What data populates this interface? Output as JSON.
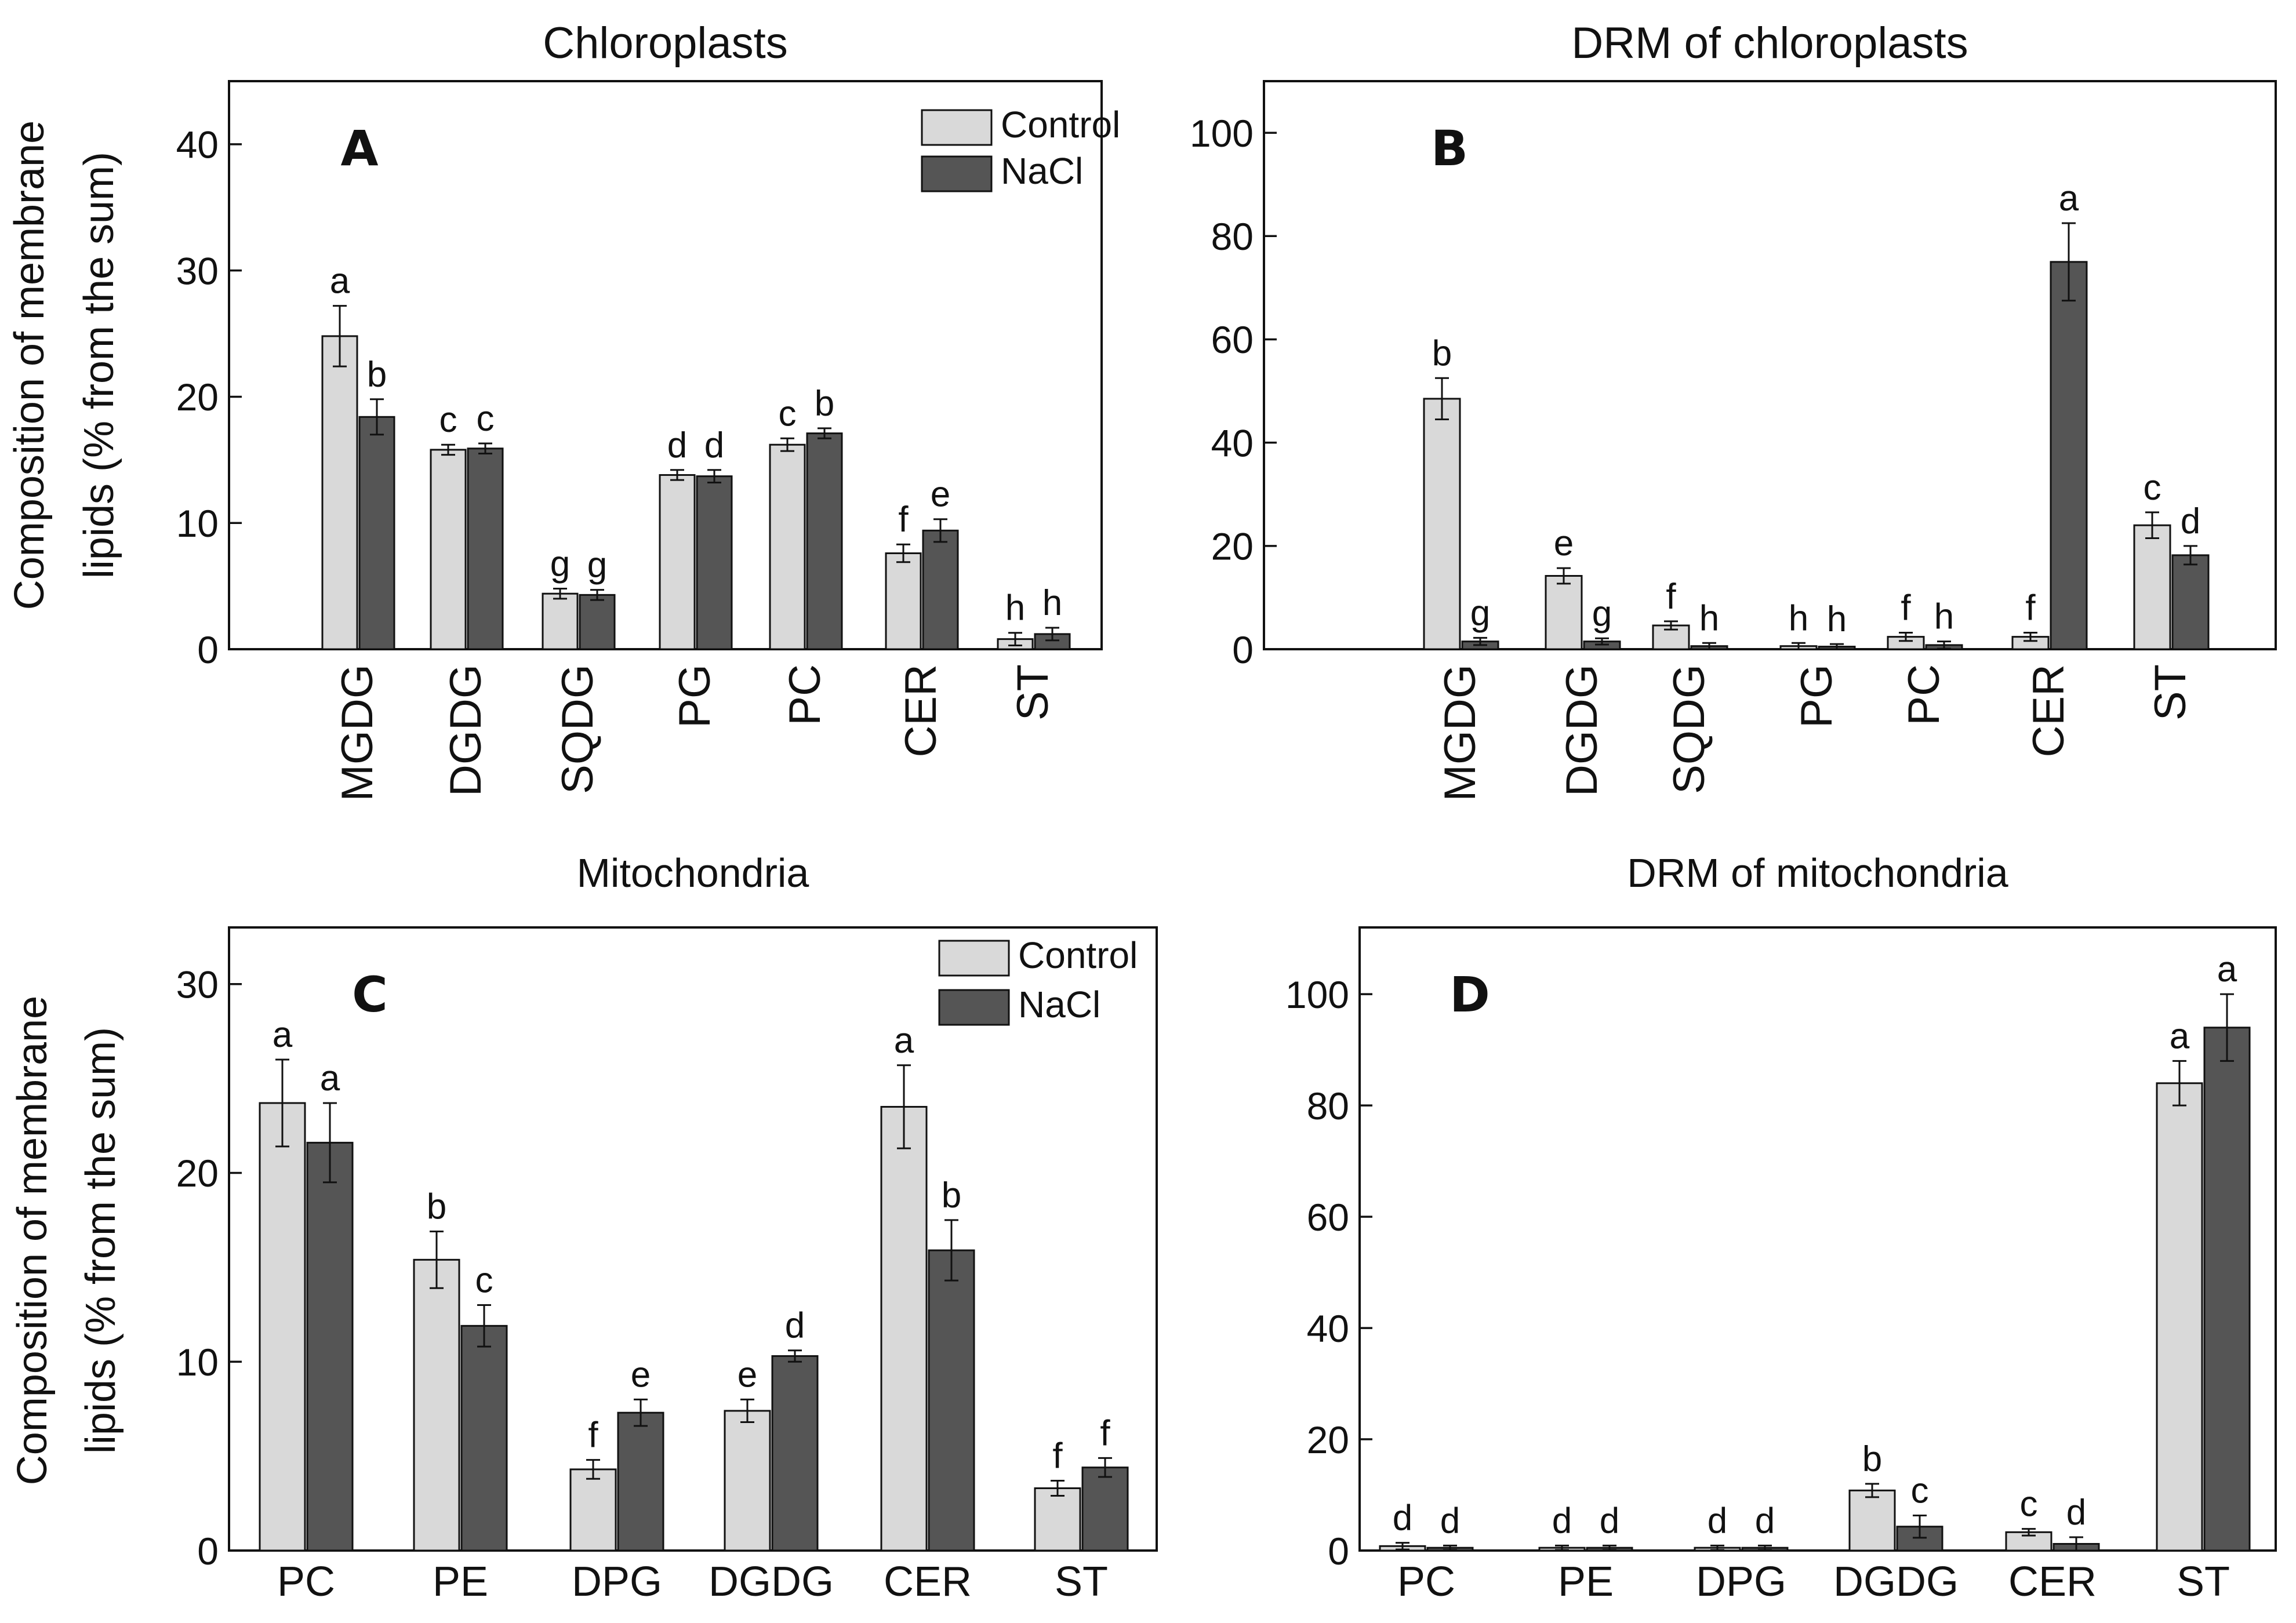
{
  "chart_data": [
    {
      "type": "bar",
      "title": "Chloroplasts",
      "panel": "A",
      "ylabel": [
        "Composition of membrane",
        "lipids (% from the sum)"
      ],
      "ylim": [
        0,
        45
      ],
      "yticks": [
        0,
        10,
        20,
        30,
        40
      ],
      "categories": [
        "MGDG",
        "DGDG",
        "SQDG",
        "PG",
        "PC",
        "CER",
        "ST"
      ],
      "xlabel_rotation": "vertical",
      "legend": true,
      "legend_position": "top-right",
      "series": [
        {
          "name": "Control",
          "color": "#d9d9d9",
          "values": [
            24.8,
            15.8,
            4.4,
            13.8,
            16.2,
            7.6,
            0.8
          ],
          "errors": [
            2.4,
            0.4,
            0.4,
            0.4,
            0.5,
            0.7,
            0.5
          ],
          "labels": [
            "a",
            "c",
            "g",
            "d",
            "c",
            "f",
            "h"
          ]
        },
        {
          "name": "NaCl",
          "color": "#555555",
          "values": [
            18.4,
            15.9,
            4.3,
            13.7,
            17.1,
            9.4,
            1.2
          ],
          "errors": [
            1.4,
            0.4,
            0.4,
            0.5,
            0.4,
            0.9,
            0.5
          ],
          "labels": [
            "b",
            "c",
            "g",
            "d",
            "b",
            "e",
            "h"
          ]
        }
      ]
    },
    {
      "type": "bar",
      "title": "DRM of chloroplasts",
      "panel": "B",
      "ylabel": [],
      "ylim": [
        0,
        110
      ],
      "yticks": [
        0,
        20,
        40,
        60,
        80,
        100
      ],
      "categories": [
        "MGDG",
        "DGDG",
        "SQDG",
        "PG",
        "PC",
        "CER",
        "ST"
      ],
      "xlabel_rotation": "vertical",
      "legend": false,
      "series": [
        {
          "name": "Control",
          "color": "#d9d9d9",
          "values": [
            48.5,
            14.2,
            4.6,
            0.6,
            2.4,
            2.4,
            24.0
          ],
          "errors": [
            4.0,
            1.5,
            0.8,
            0.6,
            0.8,
            0.8,
            2.5
          ],
          "labels": [
            "b",
            "e",
            "f",
            "h",
            "f",
            "f",
            "c"
          ]
        },
        {
          "name": "NaCl",
          "color": "#555555",
          "values": [
            1.5,
            1.5,
            0.6,
            0.5,
            0.8,
            75.0,
            18.2
          ],
          "errors": [
            0.7,
            0.6,
            0.6,
            0.5,
            0.7,
            7.5,
            1.8
          ],
          "labels": [
            "g",
            "g",
            "h",
            "h",
            "h",
            "a",
            "d"
          ]
        }
      ]
    },
    {
      "type": "bar",
      "title": "Mitochondria",
      "panel": "C",
      "ylabel": [
        "Composition of membrane",
        "lipids (% from the sum)"
      ],
      "ylim": [
        0,
        33
      ],
      "yticks": [
        0,
        10,
        20,
        30
      ],
      "categories": [
        "PC",
        "PE",
        "DPG",
        "DGDG",
        "CER",
        "ST"
      ],
      "xlabel_rotation": "horizontal",
      "legend": true,
      "legend_position": "top-right",
      "series": [
        {
          "name": "Control",
          "color": "#d9d9d9",
          "values": [
            23.7,
            15.4,
            4.3,
            7.4,
            23.5,
            3.3
          ],
          "errors": [
            2.3,
            1.5,
            0.5,
            0.6,
            2.2,
            0.4
          ],
          "labels": [
            "a",
            "b",
            "f",
            "e",
            "a",
            "f"
          ]
        },
        {
          "name": "NaCl",
          "color": "#555555",
          "values": [
            21.6,
            11.9,
            7.3,
            10.3,
            15.9,
            4.4
          ],
          "errors": [
            2.1,
            1.1,
            0.7,
            0.3,
            1.6,
            0.5
          ],
          "labels": [
            "a",
            "c",
            "e",
            "d",
            "b",
            "f"
          ]
        }
      ]
    },
    {
      "type": "bar",
      "title": "DRM of mitochondria",
      "panel": "D",
      "ylabel": [],
      "ylim": [
        0,
        112
      ],
      "yticks": [
        0,
        20,
        40,
        60,
        80,
        100
      ],
      "categories": [
        "PC",
        "PE",
        "DPG",
        "DGDG",
        "CER",
        "ST"
      ],
      "xlabel_rotation": "horizontal",
      "legend": false,
      "series": [
        {
          "name": "Control",
          "color": "#d9d9d9",
          "values": [
            0.8,
            0.5,
            0.5,
            10.8,
            3.3,
            84.0
          ],
          "errors": [
            0.6,
            0.4,
            0.4,
            1.2,
            0.6,
            4.0
          ],
          "labels": [
            "d",
            "d",
            "d",
            "b",
            "c",
            "a"
          ]
        },
        {
          "name": "NaCl",
          "color": "#555555",
          "values": [
            0.5,
            0.5,
            0.5,
            4.3,
            1.2,
            94.0
          ],
          "errors": [
            0.4,
            0.4,
            0.4,
            2.0,
            1.2,
            6.0
          ],
          "labels": [
            "d",
            "d",
            "d",
            "c",
            "d",
            "a"
          ]
        }
      ]
    }
  ]
}
